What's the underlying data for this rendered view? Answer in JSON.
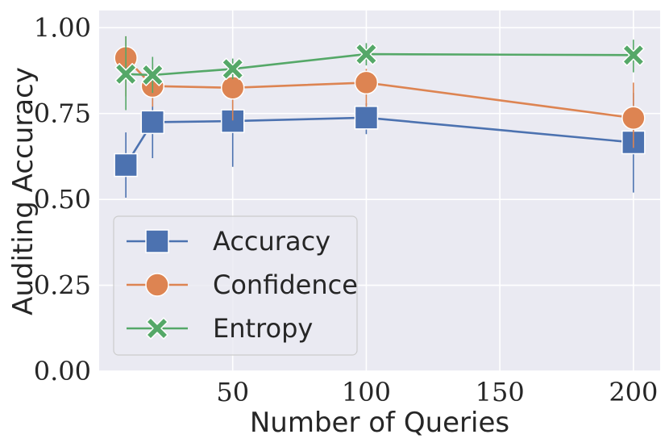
{
  "chart_data": {
    "type": "line",
    "title": "",
    "xlabel": "Number of Queries",
    "ylabel": "Auditing Accuracy",
    "xlim": [
      0,
      210
    ],
    "ylim": [
      0.0,
      1.05
    ],
    "xticks": [
      50,
      100,
      150,
      200
    ],
    "xtick_labels": [
      "50",
      "100",
      "150",
      "200"
    ],
    "yticks": [
      0.0,
      0.25,
      0.5,
      0.75,
      1.0
    ],
    "ytick_labels": [
      "0.00",
      "0.25",
      "0.50",
      "0.75",
      "1.00"
    ],
    "grid": true,
    "legend_position": "lower-left",
    "x": [
      10,
      20,
      50,
      100,
      200
    ],
    "series": [
      {
        "name": "Accuracy",
        "marker": "square",
        "color": "#4c72b0",
        "values": [
          0.6,
          0.725,
          0.728,
          0.738,
          0.666
        ],
        "err_low": [
          0.505,
          0.62,
          0.595,
          0.69,
          0.52
        ],
        "err_high": [
          0.695,
          0.81,
          0.84,
          0.78,
          0.81
        ]
      },
      {
        "name": "Confidence",
        "marker": "circle",
        "color": "#dd8452",
        "values": [
          0.912,
          0.83,
          0.825,
          0.84,
          0.737
        ],
        "err_low": [
          0.8,
          0.77,
          0.73,
          0.77,
          0.65
        ],
        "err_high": [
          0.975,
          0.895,
          0.87,
          0.88,
          0.84
        ]
      },
      {
        "name": "Entropy",
        "marker": "x",
        "color": "#55a868",
        "values": [
          0.865,
          0.862,
          0.88,
          0.923,
          0.92
        ],
        "err_low": [
          0.76,
          0.81,
          0.85,
          0.89,
          0.87
        ],
        "err_high": [
          0.975,
          0.915,
          0.91,
          0.955,
          0.965
        ]
      }
    ]
  }
}
